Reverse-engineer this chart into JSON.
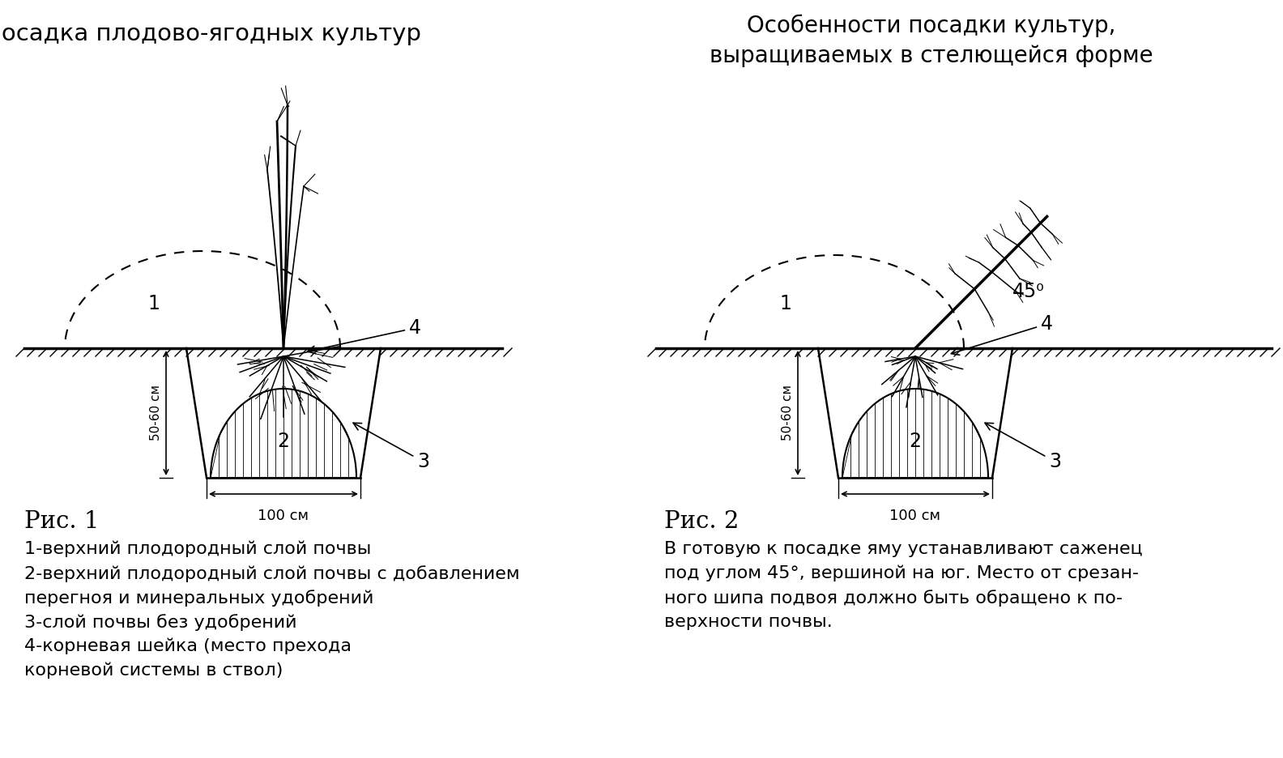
{
  "title1": "Посадка плодово-ягодных культур",
  "title2_line1": "Особенности посадки культур,",
  "title2_line2": "выращиваемых в стелющейся форме",
  "caption1_title": "Рис. 1",
  "caption1_lines": [
    "1-верхний плодородный слой почвы",
    "2-верхний плодородный слой почвы с добавлением",
    "перегноя и минеральных удобрений",
    "3-слой почвы без удобрений",
    "4-корневая шейка (место прехода",
    "корневой системы в ствол)"
  ],
  "caption2_title": "Рис. 2",
  "caption2_lines": [
    "В готовую к посадке яму устанавливают саженец",
    "под углом 45°, вершиной на юг. Место от срезан-",
    "ного шипа подвоя должно быть обращено к по-",
    "верхности почвы."
  ],
  "bg_color": "#ffffff",
  "line_color": "#000000",
  "fig_width": 15.84,
  "fig_height": 9.36,
  "dpi": 100
}
